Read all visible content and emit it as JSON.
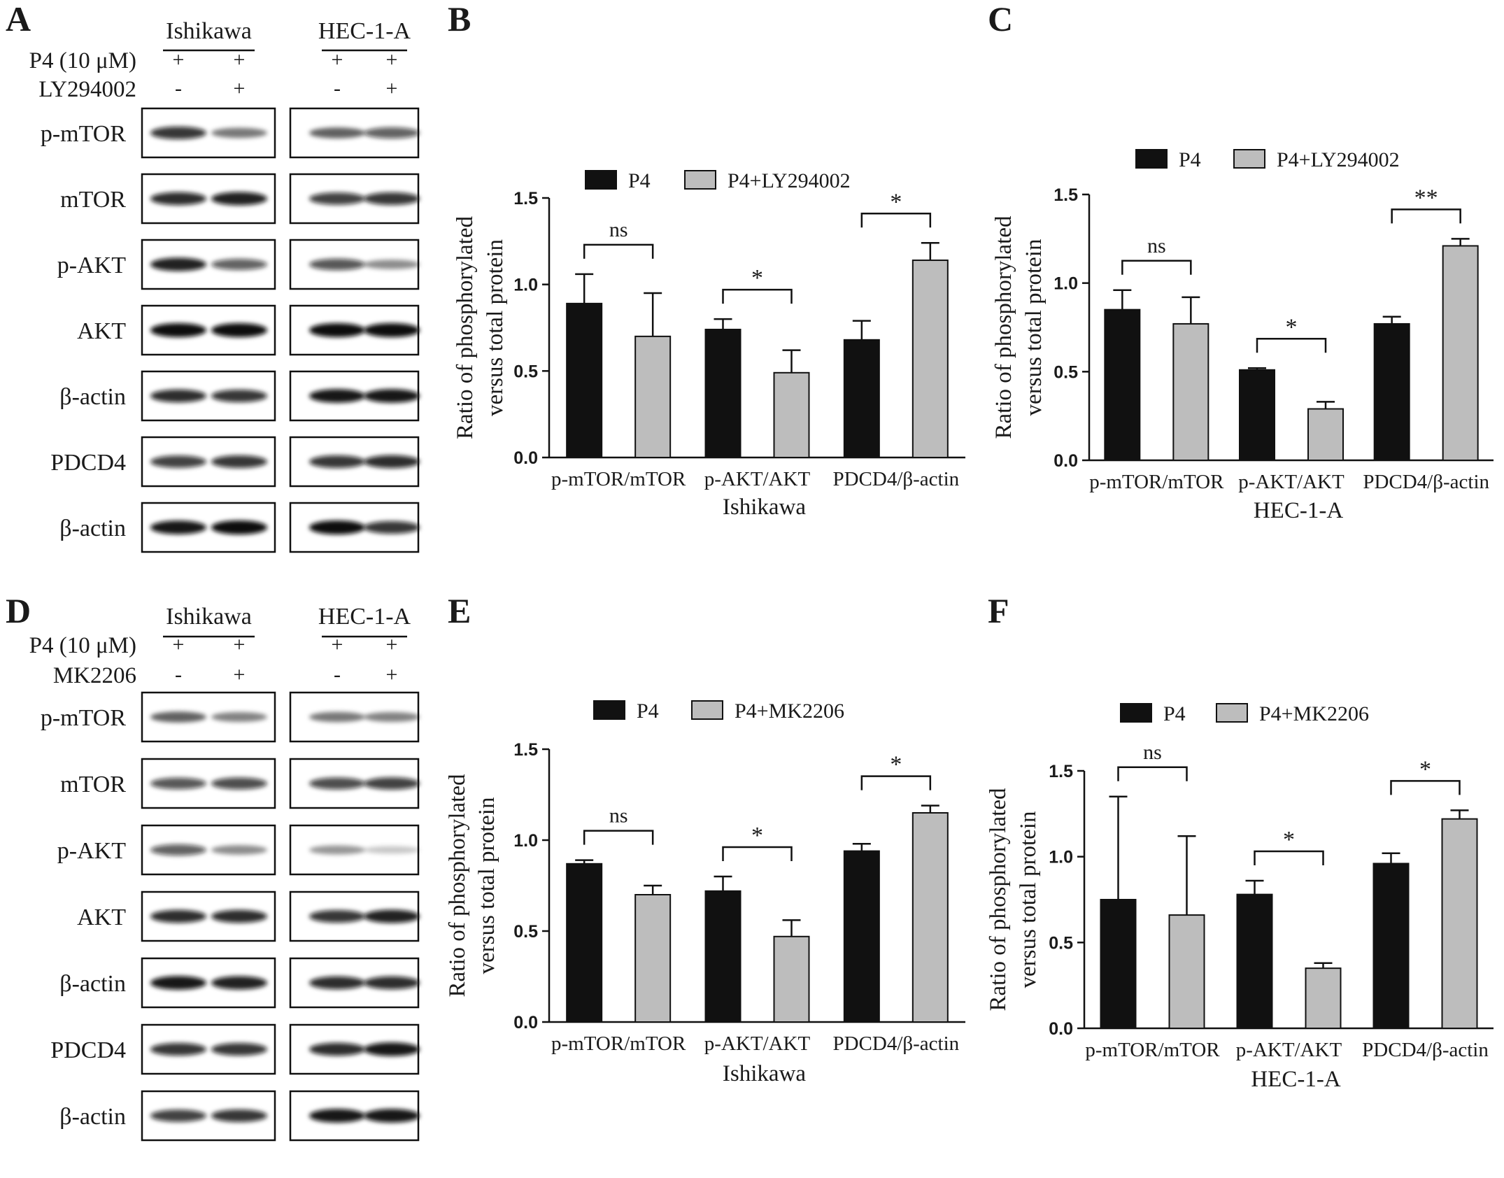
{
  "panel_letters": [
    "A",
    "B",
    "C",
    "D",
    "E",
    "F"
  ],
  "blots": [
    {
      "letter": "A",
      "cell_lines": [
        "Ishikawa",
        "HEC-1-A"
      ],
      "treatments": [
        {
          "label": "P4 (10 μM)",
          "signs": [
            "+",
            "+",
            "+",
            "+"
          ]
        },
        {
          "label": "LY294002",
          "signs": [
            "-",
            "+",
            "-",
            "+"
          ]
        }
      ],
      "rows": [
        {
          "label": "p-mTOR",
          "bands": [
            [
              0.8,
              0.45
            ],
            [
              0.55,
              0.6
            ]
          ]
        },
        {
          "label": "mTOR",
          "bands": [
            [
              0.85,
              0.9
            ],
            [
              0.75,
              0.8
            ]
          ]
        },
        {
          "label": "p-AKT",
          "bands": [
            [
              0.9,
              0.6
            ],
            [
              0.65,
              0.35
            ]
          ]
        },
        {
          "label": "AKT",
          "bands": [
            [
              1.0,
              1.0
            ],
            [
              1.0,
              1.0
            ]
          ]
        },
        {
          "label": "β-actin",
          "bands": [
            [
              0.85,
              0.8
            ],
            [
              0.95,
              0.95
            ]
          ]
        },
        {
          "label": "PDCD4",
          "bands": [
            [
              0.75,
              0.8
            ],
            [
              0.8,
              0.85
            ]
          ]
        },
        {
          "label": "β-actin",
          "bands": [
            [
              0.95,
              1.0
            ],
            [
              1.0,
              0.8
            ]
          ]
        }
      ]
    },
    {
      "letter": "D",
      "cell_lines": [
        "Ishikawa",
        "HEC-1-A"
      ],
      "treatments": [
        {
          "label": "P4 (10 μM)",
          "signs": [
            "+",
            "+",
            "+",
            "+"
          ]
        },
        {
          "label": "MK2206",
          "signs": [
            "-",
            "+",
            "-",
            "+"
          ]
        }
      ],
      "rows": [
        {
          "label": "p-mTOR",
          "bands": [
            [
              0.55,
              0.4
            ],
            [
              0.45,
              0.4
            ]
          ]
        },
        {
          "label": "mTOR",
          "bands": [
            [
              0.65,
              0.7
            ],
            [
              0.7,
              0.75
            ]
          ]
        },
        {
          "label": "p-AKT",
          "bands": [
            [
              0.6,
              0.35
            ],
            [
              0.3,
              0.08
            ]
          ]
        },
        {
          "label": "AKT",
          "bands": [
            [
              0.85,
              0.85
            ],
            [
              0.8,
              0.9
            ]
          ]
        },
        {
          "label": "β-actin",
          "bands": [
            [
              0.95,
              0.9
            ],
            [
              0.85,
              0.85
            ]
          ]
        },
        {
          "label": "PDCD4",
          "bands": [
            [
              0.8,
              0.8
            ],
            [
              0.85,
              0.95
            ]
          ]
        },
        {
          "label": "β-actin",
          "bands": [
            [
              0.75,
              0.8
            ],
            [
              0.95,
              0.95
            ]
          ]
        }
      ]
    }
  ],
  "chart_data": [
    {
      "letter": "B",
      "type": "bar",
      "xlabel": "Ishikawa",
      "ylabel_lines": [
        "Ratio of phosphorylated",
        "versus total protein"
      ],
      "ylim": [
        0,
        1.5
      ],
      "yticks": [
        "0.0",
        "0.5",
        "1.0",
        "1.5"
      ],
      "categories": [
        "p-mTOR/mTOR",
        "p-AKT/AKT",
        "PDCD4/β-actin"
      ],
      "series": [
        {
          "name": "P4",
          "values": [
            0.89,
            0.74,
            0.68
          ],
          "errors": [
            0.17,
            0.06,
            0.11
          ]
        },
        {
          "name": "P4+LY294002",
          "values": [
            0.7,
            0.49,
            1.14
          ],
          "errors": [
            0.25,
            0.13,
            0.1
          ]
        }
      ],
      "significance": [
        "ns",
        "*",
        "*"
      ],
      "colors": [
        "#111111",
        "#bdbdbd"
      ],
      "legend_position": "top"
    },
    {
      "letter": "C",
      "type": "bar",
      "xlabel": "HEC-1-A",
      "ylabel_lines": [
        "Ratio of phosphorylated",
        "versus total protein"
      ],
      "ylim": [
        0,
        1.5
      ],
      "yticks": [
        "0.0",
        "0.5",
        "1.0",
        "1.5"
      ],
      "categories": [
        "p-mTOR/mTOR",
        "p-AKT/AKT",
        "PDCD4/β-actin"
      ],
      "series": [
        {
          "name": "P4",
          "values": [
            0.85,
            0.51,
            0.77
          ],
          "errors": [
            0.11,
            0.01,
            0.04
          ]
        },
        {
          "name": "P4+LY294002",
          "values": [
            0.77,
            0.29,
            1.21
          ],
          "errors": [
            0.15,
            0.04,
            0.04
          ]
        }
      ],
      "significance": [
        "ns",
        "*",
        "**"
      ],
      "colors": [
        "#111111",
        "#bdbdbd"
      ],
      "legend_position": "top"
    },
    {
      "letter": "E",
      "type": "bar",
      "xlabel": "Ishikawa",
      "ylabel_lines": [
        "Ratio of phosphorylated",
        "versus total protein"
      ],
      "ylim": [
        0,
        1.5
      ],
      "yticks": [
        "0.0",
        "0.5",
        "1.0",
        "1.5"
      ],
      "categories": [
        "p-mTOR/mTOR",
        "p-AKT/AKT",
        "PDCD4/β-actin"
      ],
      "series": [
        {
          "name": "P4",
          "values": [
            0.87,
            0.72,
            0.94
          ],
          "errors": [
            0.02,
            0.08,
            0.04
          ]
        },
        {
          "name": "P4+MK2206",
          "values": [
            0.7,
            0.47,
            1.15
          ],
          "errors": [
            0.05,
            0.09,
            0.04
          ]
        }
      ],
      "significance": [
        "ns",
        "*",
        "*"
      ],
      "colors": [
        "#111111",
        "#bdbdbd"
      ],
      "legend_position": "top"
    },
    {
      "letter": "F",
      "type": "bar",
      "xlabel": "HEC-1-A",
      "ylabel_lines": [
        "Ratio of phosphorylated",
        "versus total protein"
      ],
      "ylim": [
        0,
        1.5
      ],
      "yticks": [
        "0.0",
        "0.5",
        "1.0",
        "1.5"
      ],
      "categories": [
        "p-mTOR/mTOR",
        "p-AKT/AKT",
        "PDCD4/β-actin"
      ],
      "series": [
        {
          "name": "P4",
          "values": [
            0.75,
            0.78,
            0.96
          ],
          "errors": [
            0.6,
            0.08,
            0.06
          ]
        },
        {
          "name": "P4+MK2206",
          "values": [
            0.66,
            0.35,
            1.22
          ],
          "errors": [
            0.46,
            0.03,
            0.05
          ]
        }
      ],
      "significance": [
        "ns",
        "*",
        "*"
      ],
      "colors": [
        "#111111",
        "#bdbdbd"
      ],
      "legend_position": "top"
    }
  ]
}
